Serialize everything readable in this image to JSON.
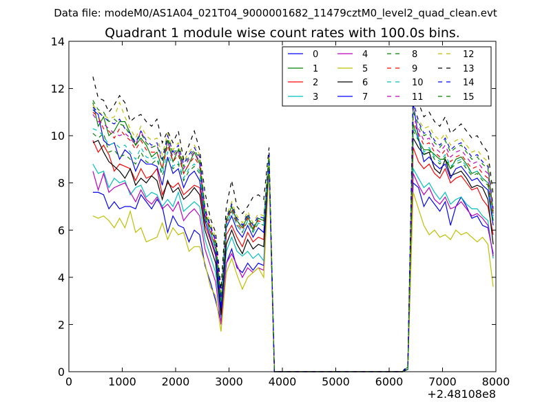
{
  "chart_data": {
    "type": "line",
    "suptitle": "Data file: modeM0/AS1A04_021T04_9000001682_11479cztM0_level2_quad_clean.evt",
    "title": "Quadrant 1 module wise count rates with 100.0s bins.",
    "xlabel": "",
    "ylabel": "",
    "xlim": [
      0,
      8000
    ],
    "ylim": [
      0,
      14
    ],
    "x_offset_label": "+2.48108e8",
    "xticks": [
      0,
      1000,
      2000,
      3000,
      4000,
      5000,
      6000,
      7000,
      8000
    ],
    "yticks": [
      0,
      2,
      4,
      6,
      8,
      10,
      12,
      14
    ],
    "legend_position": "top-right",
    "x": [
      450,
      550,
      650,
      750,
      850,
      950,
      1050,
      1150,
      1250,
      1350,
      1450,
      1550,
      1650,
      1750,
      1850,
      1950,
      2050,
      2150,
      2250,
      2350,
      2450,
      2550,
      2650,
      2750,
      2850,
      2950,
      3050,
      3150,
      3250,
      3350,
      3450,
      3550,
      3650,
      3750,
      3850,
      3950,
      6250,
      6350,
      6450,
      6550,
      6650,
      6750,
      6850,
      6950,
      7050,
      7150,
      7250,
      7350,
      7450,
      7550,
      7650,
      7750,
      7850,
      7950
    ],
    "series": [
      {
        "name": "0",
        "color": "#0000ff",
        "dash": "solid",
        "values": [
          7.6,
          7.6,
          7.5,
          6.9,
          7.2,
          6.9,
          7.0,
          7.0,
          6.9,
          7.5,
          7.2,
          6.9,
          7.3,
          7.0,
          5.9,
          6.6,
          6.2,
          6.1,
          5.5,
          6.0,
          5.8,
          4.5,
          3.8,
          3.0,
          2.1,
          4.6,
          5.2,
          4.4,
          4.2,
          4.6,
          4.3,
          4.6,
          4.5,
          8.8,
          0,
          0,
          0,
          0.1,
          8.0,
          7.8,
          7.0,
          7.4,
          7.1,
          6.8,
          7.2,
          6.2,
          7.0,
          7.4,
          7.0,
          6.5,
          6.6,
          6.2,
          6.1,
          5.0
        ]
      },
      {
        "name": "1",
        "color": "#008000",
        "dash": "solid",
        "values": [
          11.4,
          10.4,
          10.8,
          10.0,
          10.2,
          10.6,
          10.6,
          10.1,
          9.6,
          9.9,
          9.6,
          9.1,
          9.3,
          8.6,
          9.8,
          8.9,
          9.4,
          8.4,
          8.8,
          9.3,
          8.8,
          6.6,
          5.9,
          5.2,
          2.9,
          6.4,
          7.0,
          6.4,
          6.1,
          6.6,
          6.0,
          6.5,
          6.4,
          9.0,
          0,
          0,
          0,
          0.1,
          10.5,
          9.8,
          9.4,
          9.4,
          9.2,
          9.0,
          9.0,
          8.6,
          9.0,
          9.1,
          8.8,
          8.4,
          8.5,
          8.2,
          8.0,
          6.4
        ]
      },
      {
        "name": "2",
        "color": "#ff0000",
        "dash": "solid",
        "values": [
          9.8,
          9.3,
          9.6,
          9.2,
          8.5,
          8.8,
          8.7,
          8.6,
          8.1,
          8.6,
          8.2,
          8.3,
          8.6,
          7.5,
          8.0,
          7.8,
          8.0,
          7.5,
          7.7,
          7.9,
          7.8,
          6.2,
          5.6,
          4.9,
          2.6,
          5.8,
          6.2,
          5.7,
          5.3,
          5.9,
          5.5,
          5.7,
          5.6,
          8.9,
          0,
          0,
          0,
          0.1,
          9.5,
          8.9,
          8.6,
          8.8,
          8.4,
          8.2,
          8.6,
          8.0,
          8.2,
          8.3,
          8.0,
          7.7,
          7.8,
          7.3,
          7.0,
          5.8
        ]
      },
      {
        "name": "3",
        "color": "#00bfbf",
        "dash": "solid",
        "values": [
          8.8,
          8.4,
          8.5,
          7.8,
          8.2,
          8.0,
          8.1,
          7.5,
          7.8,
          7.9,
          7.4,
          7.6,
          7.5,
          7.0,
          7.3,
          7.0,
          7.6,
          6.8,
          7.0,
          7.2,
          7.0,
          5.6,
          4.9,
          4.2,
          2.3,
          5.1,
          5.7,
          5.1,
          4.9,
          5.1,
          4.8,
          5.0,
          4.7,
          8.8,
          0,
          0,
          0,
          0.1,
          8.6,
          8.2,
          7.8,
          8.0,
          7.6,
          7.3,
          7.6,
          7.1,
          7.3,
          7.4,
          7.1,
          6.9,
          6.9,
          6.6,
          6.4,
          4.8
        ]
      },
      {
        "name": "4",
        "color": "#bf00bf",
        "dash": "solid",
        "values": [
          8.5,
          7.7,
          8.4,
          7.6,
          7.8,
          7.9,
          8.0,
          7.6,
          7.2,
          7.7,
          7.3,
          7.1,
          7.4,
          6.9,
          7.1,
          6.8,
          7.2,
          6.4,
          6.7,
          6.9,
          6.6,
          5.2,
          4.5,
          3.8,
          2.0,
          4.6,
          5.0,
          4.5,
          4.0,
          4.4,
          4.2,
          4.4,
          4.3,
          8.7,
          0,
          0,
          0,
          0.1,
          8.4,
          7.9,
          7.5,
          7.8,
          7.3,
          7.1,
          7.4,
          6.9,
          7.0,
          7.2,
          6.9,
          6.6,
          6.7,
          6.5,
          6.2,
          4.9
        ]
      },
      {
        "name": "5",
        "color": "#bfbf00",
        "dash": "solid",
        "values": [
          6.6,
          6.5,
          6.6,
          6.4,
          6.1,
          6.5,
          6.1,
          6.8,
          5.9,
          6.1,
          5.5,
          5.6,
          5.7,
          6.3,
          5.6,
          6.1,
          5.8,
          5.9,
          5.1,
          5.3,
          5.3,
          4.6,
          3.6,
          3.2,
          1.7,
          4.2,
          4.8,
          4.1,
          3.5,
          4.0,
          4.2,
          4.4,
          4.0,
          8.6,
          0,
          0,
          0,
          0.1,
          7.6,
          6.9,
          6.2,
          5.8,
          6.0,
          5.7,
          5.8,
          5.6,
          6.0,
          5.8,
          5.9,
          5.7,
          5.5,
          5.7,
          5.4,
          3.6
        ]
      },
      {
        "name": "6",
        "color": "#000000",
        "dash": "solid",
        "values": [
          9.7,
          9.8,
          9.3,
          8.9,
          8.7,
          8.5,
          8.2,
          8.6,
          7.9,
          8.2,
          8.0,
          8.3,
          8.1,
          7.3,
          8.1,
          7.6,
          7.8,
          7.3,
          7.5,
          7.8,
          7.5,
          6.0,
          5.3,
          4.6,
          2.4,
          5.4,
          6.0,
          5.4,
          5.0,
          5.6,
          5.2,
          5.4,
          5.3,
          8.9,
          0,
          0,
          0,
          0.1,
          9.9,
          9.5,
          9.2,
          9.3,
          8.6,
          8.4,
          9.0,
          8.3,
          8.4,
          8.5,
          8.2,
          7.8,
          7.9,
          7.8,
          7.3,
          5.4
        ]
      },
      {
        "name": "7",
        "color": "#0000ff",
        "dash": "solid",
        "values": [
          11.1,
          10.9,
          9.8,
          9.6,
          9.7,
          9.0,
          9.4,
          9.2,
          8.5,
          9.0,
          8.8,
          8.8,
          8.7,
          7.9,
          9.1,
          8.4,
          8.6,
          7.8,
          8.3,
          8.5,
          8.1,
          6.4,
          5.7,
          5.0,
          2.7,
          6.1,
          6.6,
          6.0,
          5.7,
          6.2,
          5.7,
          6.1,
          5.9,
          8.9,
          0,
          0,
          0,
          0.2,
          11.4,
          9.9,
          8.9,
          9.1,
          8.8,
          8.6,
          8.8,
          8.2,
          8.6,
          8.7,
          8.4,
          8.1,
          8.2,
          7.9,
          7.7,
          6.2
        ]
      },
      {
        "name": "8",
        "color": "#008000",
        "dash": "dashed",
        "values": [
          10.1,
          9.9,
          10.1,
          9.3,
          9.4,
          9.1,
          9.2,
          9.0,
          8.8,
          9.3,
          8.9,
          8.8,
          9.0,
          8.3,
          9.0,
          8.6,
          8.8,
          8.1,
          8.5,
          8.7,
          8.4,
          6.5,
          5.9,
          5.3,
          3.0,
          6.2,
          6.8,
          6.2,
          5.9,
          6.4,
          5.9,
          6.3,
          6.2,
          9.0,
          0,
          0,
          0,
          0.1,
          10.2,
          9.8,
          9.2,
          9.4,
          9.0,
          8.8,
          9.1,
          8.6,
          8.8,
          8.9,
          8.6,
          8.3,
          8.4,
          8.1,
          7.9,
          6.3
        ]
      },
      {
        "name": "9",
        "color": "#ff0000",
        "dash": "dashed",
        "values": [
          11.0,
          10.8,
          10.3,
          10.2,
          9.9,
          10.3,
          10.0,
          9.8,
          9.4,
          9.8,
          9.4,
          9.3,
          9.3,
          8.6,
          9.6,
          8.9,
          9.2,
          8.4,
          8.8,
          9.1,
          8.7,
          6.7,
          6.0,
          5.4,
          3.0,
          6.3,
          6.9,
          6.3,
          6.0,
          6.5,
          6.0,
          6.4,
          6.3,
          9.0,
          0,
          0,
          0,
          0.2,
          10.6,
          10.1,
          9.6,
          9.7,
          9.3,
          9.1,
          9.4,
          8.9,
          9.1,
          9.2,
          8.9,
          8.6,
          8.7,
          8.4,
          8.2,
          6.6
        ]
      },
      {
        "name": "10",
        "color": "#00bfbf",
        "dash": "dashed",
        "values": [
          10.3,
          10.2,
          10.0,
          9.6,
          9.7,
          9.5,
          9.6,
          9.3,
          9.0,
          9.5,
          9.1,
          9.0,
          9.1,
          8.4,
          9.3,
          8.7,
          8.9,
          8.2,
          8.6,
          8.8,
          8.5,
          6.5,
          5.9,
          5.3,
          2.9,
          6.2,
          6.8,
          6.2,
          5.9,
          6.4,
          5.9,
          6.3,
          6.2,
          9.0,
          0,
          0,
          0,
          0.1,
          10.3,
          9.9,
          9.3,
          9.5,
          9.1,
          8.9,
          9.2,
          8.7,
          8.9,
          9.0,
          8.7,
          8.4,
          8.5,
          8.2,
          8.0,
          6.4
        ]
      },
      {
        "name": "11",
        "color": "#bf00bf",
        "dash": "dashed",
        "values": [
          10.9,
          10.6,
          10.5,
          10.3,
          10.1,
          10.0,
          10.1,
          9.9,
          9.6,
          10.2,
          9.7,
          9.5,
          9.6,
          8.9,
          9.8,
          9.1,
          9.4,
          8.6,
          9.0,
          9.3,
          8.9,
          6.8,
          6.1,
          5.5,
          3.1,
          6.4,
          7.0,
          6.4,
          6.1,
          6.6,
          6.1,
          6.5,
          6.4,
          9.1,
          0,
          0,
          0,
          0.2,
          10.8,
          10.3,
          9.8,
          9.9,
          9.5,
          9.3,
          9.6,
          9.1,
          9.3,
          9.4,
          9.1,
          8.8,
          8.9,
          8.6,
          8.4,
          6.7
        ]
      },
      {
        "name": "12",
        "color": "#bfbf00",
        "dash": "dashed",
        "values": [
          11.3,
          11.0,
          10.9,
          10.7,
          10.8,
          11.4,
          10.8,
          10.3,
          9.9,
          10.4,
          10.0,
          9.8,
          9.9,
          9.2,
          10.1,
          9.4,
          9.7,
          8.9,
          9.3,
          9.6,
          9.2,
          7.0,
          6.3,
          5.7,
          3.2,
          6.6,
          7.2,
          6.6,
          6.3,
          6.8,
          6.3,
          6.7,
          6.6,
          9.2,
          0,
          0,
          0,
          0.2,
          11.2,
          10.7,
          10.3,
          10.4,
          10.0,
          9.8,
          10.1,
          9.6,
          9.8,
          9.9,
          9.6,
          9.3,
          9.4,
          9.1,
          8.9,
          7.1
        ]
      },
      {
        "name": "13",
        "color": "#000000",
        "dash": "dashed",
        "values": [
          12.5,
          11.6,
          11.5,
          11.0,
          11.3,
          11.7,
          11.4,
          10.6,
          10.8,
          10.9,
          10.6,
          10.4,
          10.7,
          9.7,
          10.2,
          9.7,
          10.2,
          9.0,
          9.6,
          10.2,
          9.4,
          7.6,
          6.5,
          5.9,
          3.5,
          7.0,
          8.1,
          7.0,
          6.7,
          7.0,
          7.4,
          7.5,
          7.3,
          9.5,
          0,
          0,
          0,
          0.3,
          12.0,
          11.4,
          10.8,
          11.0,
          10.6,
          10.4,
          10.8,
          10.1,
          10.3,
          10.5,
          10.2,
          9.9,
          10.0,
          9.6,
          9.3,
          7.5
        ]
      },
      {
        "name": "14",
        "color": "#0000ff",
        "dash": "dashed",
        "values": [
          11.2,
          11.0,
          10.8,
          10.6,
          10.5,
          10.7,
          10.3,
          10.1,
          9.7,
          10.2,
          9.8,
          9.6,
          9.7,
          9.0,
          10.0,
          9.3,
          9.6,
          8.8,
          9.2,
          9.5,
          9.1,
          6.9,
          6.2,
          5.6,
          3.1,
          6.5,
          7.1,
          6.5,
          6.2,
          6.7,
          6.2,
          6.6,
          6.5,
          9.2,
          0,
          0,
          0,
          0.2,
          11.5,
          10.6,
          10.1,
          10.2,
          9.8,
          9.6,
          9.9,
          9.4,
          9.6,
          9.7,
          9.4,
          9.1,
          9.2,
          8.9,
          8.7,
          6.9
        ]
      },
      {
        "name": "15",
        "color": "#008000",
        "dash": "dashed",
        "values": [
          11.5,
          11.1,
          11.0,
          10.6,
          10.7,
          10.5,
          10.4,
          10.0,
          9.6,
          10.1,
          9.7,
          9.5,
          9.6,
          8.9,
          9.9,
          9.2,
          9.5,
          8.7,
          9.1,
          9.4,
          9.0,
          6.8,
          6.1,
          5.5,
          3.0,
          6.4,
          7.0,
          6.4,
          6.1,
          6.6,
          6.1,
          6.5,
          6.4,
          9.1,
          0,
          0,
          0,
          0.2,
          11.0,
          10.5,
          10.0,
          10.1,
          9.7,
          9.5,
          9.8,
          9.3,
          9.5,
          9.6,
          9.3,
          9.0,
          9.1,
          8.8,
          8.6,
          6.8
        ]
      }
    ]
  }
}
